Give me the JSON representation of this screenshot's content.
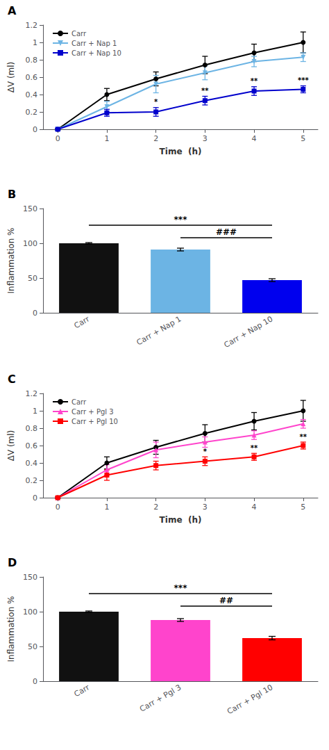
{
  "chart_data": [
    {
      "type": "line",
      "title": "A",
      "x": [
        0,
        1,
        2,
        3,
        4,
        5
      ],
      "xlabel": "Time  (h)",
      "ylabel": "ΔV (ml)",
      "xlim": [
        -0.3,
        5.3
      ],
      "xticks": [
        0,
        1,
        2,
        3,
        4,
        5
      ],
      "ylim": [
        0.0,
        1.2
      ],
      "yticks": [
        0.0,
        0.2,
        0.4,
        0.6,
        0.8,
        1.0,
        1.2
      ],
      "grid": false,
      "legend": "upper left",
      "series": [
        {
          "name": "Carr",
          "color": "#000000",
          "marker": "circle",
          "values": [
            0.0,
            0.4,
            0.58,
            0.74,
            0.88,
            1.0
          ],
          "errors": [
            0.01,
            0.07,
            0.08,
            0.1,
            0.1,
            0.12
          ]
        },
        {
          "name": "Carr + Nap 1",
          "color": "#6CB4E4",
          "marker": "triangle-down",
          "values": [
            0.0,
            0.26,
            0.52,
            0.65,
            0.78,
            0.83
          ],
          "errors": [
            0.01,
            0.06,
            0.1,
            0.08,
            0.06,
            0.05
          ]
        },
        {
          "name": "Carr + Nap 10",
          "color": "#0000CC",
          "marker": "square",
          "values": [
            0.0,
            0.19,
            0.2,
            0.33,
            0.44,
            0.46
          ],
          "errors": [
            0.01,
            0.04,
            0.05,
            0.05,
            0.05,
            0.04
          ]
        }
      ],
      "annotations": [
        {
          "x": 2,
          "series": "Carr + Nap 10",
          "text": "*"
        },
        {
          "x": 3,
          "series": "Carr + Nap 10",
          "text": "**"
        },
        {
          "x": 4,
          "series": "Carr + Nap 10",
          "text": "**"
        },
        {
          "x": 5,
          "series": "Carr + Nap 10",
          "text": "***"
        }
      ]
    },
    {
      "type": "bar",
      "title": "B",
      "categories": [
        "Carr",
        "Carr + Nap 1",
        "Carr + Nap 10"
      ],
      "values": [
        100.0,
        91.0,
        47.0
      ],
      "errors": [
        1.0,
        2.0,
        2.0
      ],
      "colors": [
        "#111111",
        "#6CB4E4",
        "#0000EE"
      ],
      "ylabel": "Inflammation %",
      "ylim": [
        0,
        150
      ],
      "yticks": [
        0,
        50,
        100,
        150
      ],
      "grid": false,
      "brackets": [
        {
          "from": "Carr",
          "to": "Carr + Nap 10",
          "y": 126,
          "text_y": 128,
          "text": "***"
        },
        {
          "from": "Carr + Nap 1",
          "to": "Carr + Nap 10",
          "y": 108,
          "text_y": 110,
          "text": "###"
        }
      ]
    },
    {
      "type": "line",
      "title": "C",
      "x": [
        0,
        1,
        2,
        3,
        4,
        5
      ],
      "xlabel": "Time  (h)",
      "ylabel": "ΔV (ml)",
      "xlim": [
        -0.3,
        5.3
      ],
      "xticks": [
        0,
        1,
        2,
        3,
        4,
        5
      ],
      "ylim": [
        0.0,
        1.2
      ],
      "yticks": [
        0.0,
        0.2,
        0.4,
        0.6,
        0.8,
        1.0,
        1.2
      ],
      "grid": false,
      "legend": "upper left",
      "series": [
        {
          "name": "Carr",
          "color": "#000000",
          "marker": "circle",
          "values": [
            0.0,
            0.4,
            0.58,
            0.74,
            0.88,
            1.0
          ],
          "errors": [
            0.01,
            0.07,
            0.08,
            0.1,
            0.1,
            0.12
          ]
        },
        {
          "name": "Carr + Pgl 3",
          "color": "#FF44CC",
          "marker": "triangle",
          "values": [
            0.0,
            0.32,
            0.55,
            0.64,
            0.72,
            0.85
          ],
          "errors": [
            0.01,
            0.06,
            0.09,
            0.06,
            0.05,
            0.05
          ]
        },
        {
          "name": "Carr + Pgl 10",
          "color": "#FF0000",
          "marker": "square",
          "values": [
            0.0,
            0.26,
            0.37,
            0.42,
            0.47,
            0.6
          ],
          "errors": [
            0.01,
            0.06,
            0.05,
            0.05,
            0.04,
            0.04
          ]
        }
      ],
      "annotations": [
        {
          "x": 3,
          "series": "Carr + Pgl 10",
          "text": "*"
        },
        {
          "x": 4,
          "series": "Carr + Pgl 10",
          "text": "**"
        },
        {
          "x": 5,
          "series": "Carr + Pgl 10",
          "text": "**"
        }
      ]
    },
    {
      "type": "bar",
      "title": "D",
      "categories": [
        "Carr",
        "Carr + Pgl 3",
        "Carr + Pgl 10"
      ],
      "values": [
        100.0,
        88.0,
        62.0
      ],
      "errors": [
        1.0,
        2.0,
        2.5
      ],
      "colors": [
        "#111111",
        "#FF44CC",
        "#FF0000"
      ],
      "ylabel": "Inflammation %",
      "ylim": [
        0,
        150
      ],
      "yticks": [
        0,
        50,
        100,
        150
      ],
      "grid": false,
      "brackets": [
        {
          "from": "Carr",
          "to": "Carr + Pgl 10",
          "y": 126,
          "text_y": 128,
          "text": "***"
        },
        {
          "from": "Carr + Pgl 3",
          "to": "Carr + Pgl 10",
          "y": 108,
          "text_y": 110,
          "text": "##"
        }
      ]
    }
  ]
}
